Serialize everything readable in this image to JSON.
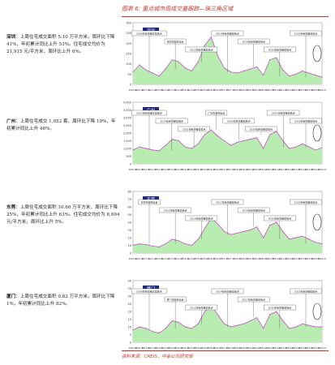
{
  "header": {
    "title": "图表 6: 重点城市周成交量跟踪—珠三角区域"
  },
  "footer": {
    "source": "资料来源：CREIS，中金公司研究部"
  },
  "cities": [
    {
      "name": "深圳",
      "text": "上周住宅成交面积 5.10 万平方米，周环比下降 41%，年初累计同比上升 53%。住宅成交均价为 21,915 元/平方米，周环比上升 6%。"
    },
    {
      "name": "广州",
      "text": "上周住宅成交 1,052 套，周环比下降 19%，年初累计同比上升 46%。"
    },
    {
      "name": "东莞",
      "text": "上周住宅成交面积 10.60 万平方米，周环比下降 25%，年初累计同比上升 63%。住宅成交均价为 8,694 元/平方米，周环比上升 5%。"
    },
    {
      "name": "厦门",
      "text": "上周住宅成交面积 9.82 万平方米，周环比下降 1%，年初累计同比上升 82%。"
    }
  ],
  "colors": {
    "area": "#b8ecb0",
    "line": "#cc33cc",
    "accent": "#c0392b",
    "label_bg": "#1f2a7a"
  },
  "chart_data": [
    {
      "type": "area",
      "label": "深圳",
      "ylim": [
        0,
        300
      ],
      "yticks": [
        "300",
        "250",
        "200",
        "150",
        "100",
        "50",
        "0"
      ],
      "x": [
        "2010-01",
        "2010-07",
        "2011-01",
        "2011-07",
        "2012-01",
        "2012-07",
        "2013-01",
        "2013-07",
        "2014-01",
        "2014-07",
        "2015-01",
        "2015-07",
        "2016-01",
        "2016-07",
        "2017-01",
        "2017-07",
        "2018-01",
        "2018-07",
        "2019-01",
        "2019-07",
        "2020-01",
        "2020-07",
        "2021-01",
        "2021-07",
        "2022-01",
        "2022-07",
        "2023-01",
        "2023-07",
        "2024-01",
        "2024-07"
      ],
      "series": [
        {
          "values": [
            60,
            95,
            70,
            55,
            40,
            75,
            120,
            110,
            80,
            65,
            110,
            190,
            230,
            140,
            80,
            60,
            55,
            65,
            75,
            85,
            45,
            120,
            130,
            70,
            40,
            50,
            65,
            55,
            45,
            35
          ]
        }
      ],
      "annotations": [
        "2008年新增量达最低点",
        "深圳市政府出台",
        "2012年新增量最低点",
        "2014年新增量最低点",
        "2019年新增量最低点",
        "2020年新增量最低点",
        "2023年新增量最低点"
      ]
    },
    {
      "type": "area",
      "label": "广州",
      "ylim": [
        0,
        4000
      ],
      "yticks": [
        "4,000",
        "3,500",
        "3,000",
        "2,500",
        "2,000",
        "1,500",
        "1,000",
        "500",
        "0"
      ],
      "x": [
        "2010-01",
        "2010-07",
        "2011-01",
        "2011-07",
        "2012-01",
        "2012-07",
        "2013-01",
        "2013-07",
        "2014-01",
        "2014-07",
        "2015-01",
        "2015-07",
        "2016-01",
        "2016-07",
        "2017-01",
        "2017-07",
        "2018-01",
        "2018-07",
        "2019-01",
        "2019-07",
        "2020-01",
        "2020-07",
        "2021-01",
        "2021-07",
        "2022-01",
        "2022-07",
        "2023-01",
        "2023-07",
        "2024-01",
        "2024-07"
      ],
      "series": [
        {
          "values": [
            900,
            1100,
            1000,
            900,
            850,
            1200,
            1600,
            1500,
            1100,
            1000,
            1300,
            1900,
            2200,
            1800,
            1500,
            1200,
            1400,
            1500,
            1600,
            1700,
            1000,
            1900,
            2100,
            1500,
            1000,
            1100,
            1300,
            1100,
            900,
            1050
          ]
        }
      ],
      "annotations": [
        "2012年新增量达最低点",
        "2014年新增量最低点",
        "2015年新增量最低点",
        "广州市政府出台",
        "2018年新增量最低点",
        "2020年新增量最低点",
        "2021年新增量最低点",
        "2023年新增量最低点"
      ]
    },
    {
      "type": "area",
      "label": "东莞",
      "ylim": [
        0,
        80
      ],
      "yticks": [
        "80",
        "70",
        "60",
        "50",
        "40",
        "30",
        "20",
        "10",
        "0"
      ],
      "x": [
        "2010-01",
        "2010-07",
        "2011-01",
        "2011-07",
        "2012-01",
        "2012-07",
        "2013-01",
        "2013-07",
        "2014-01",
        "2014-07",
        "2015-01",
        "2015-07",
        "2016-01",
        "2016-07",
        "2017-01",
        "2017-07",
        "2018-01",
        "2018-07",
        "2019-01",
        "2019-07",
        "2020-01",
        "2020-07",
        "2021-01",
        "2021-07",
        "2022-01",
        "2022-07",
        "2023-01",
        "2023-07",
        "2024-01",
        "2024-07"
      ],
      "series": [
        {
          "values": [
            10,
            12,
            11,
            9,
            8,
            12,
            18,
            16,
            12,
            10,
            18,
            32,
            45,
            38,
            28,
            24,
            26,
            28,
            30,
            34,
            20,
            36,
            40,
            28,
            18,
            20,
            22,
            18,
            14,
            12
          ]
        }
      ],
      "annotations": [
        "东莞市政府出台",
        "2012年新增量最低点",
        "2014年新增量最低点",
        "2017年新增量最低点",
        "2019年新增量最低点",
        "2020年新增量最低点",
        "2023年新增量最低点"
      ]
    },
    {
      "type": "area",
      "label": "厦门",
      "ylim": [
        0,
        40
      ],
      "yticks": [
        "40",
        "35",
        "30",
        "25",
        "20",
        "15",
        "10",
        "5",
        "0"
      ],
      "x": [
        "2010-01",
        "2010-07",
        "2011-01",
        "2011-07",
        "2012-01",
        "2012-07",
        "2013-01",
        "2013-07",
        "2014-01",
        "2014-07",
        "2015-01",
        "2015-07",
        "2016-01",
        "2016-07",
        "2017-01",
        "2017-07",
        "2018-01",
        "2018-07",
        "2019-01",
        "2019-07",
        "2020-01",
        "2020-07",
        "2021-01",
        "2021-07",
        "2022-01",
        "2022-07",
        "2023-01",
        "2023-07",
        "2024-01",
        "2024-07"
      ],
      "series": [
        {
          "values": [
            8,
            10,
            9,
            7,
            6,
            9,
            14,
            13,
            10,
            9,
            12,
            20,
            24,
            18,
            12,
            10,
            11,
            12,
            14,
            16,
            9,
            18,
            20,
            14,
            9,
            10,
            12,
            11,
            10,
            10
          ]
        }
      ],
      "annotations": [
        "2008年新增量达最低点",
        "厦门市政府出台",
        "2012年新增量最低点",
        "2014年新增量最低点",
        "2017年新增量最低点",
        "2020年新增量最低点",
        "2023年新增量最低点"
      ]
    }
  ]
}
